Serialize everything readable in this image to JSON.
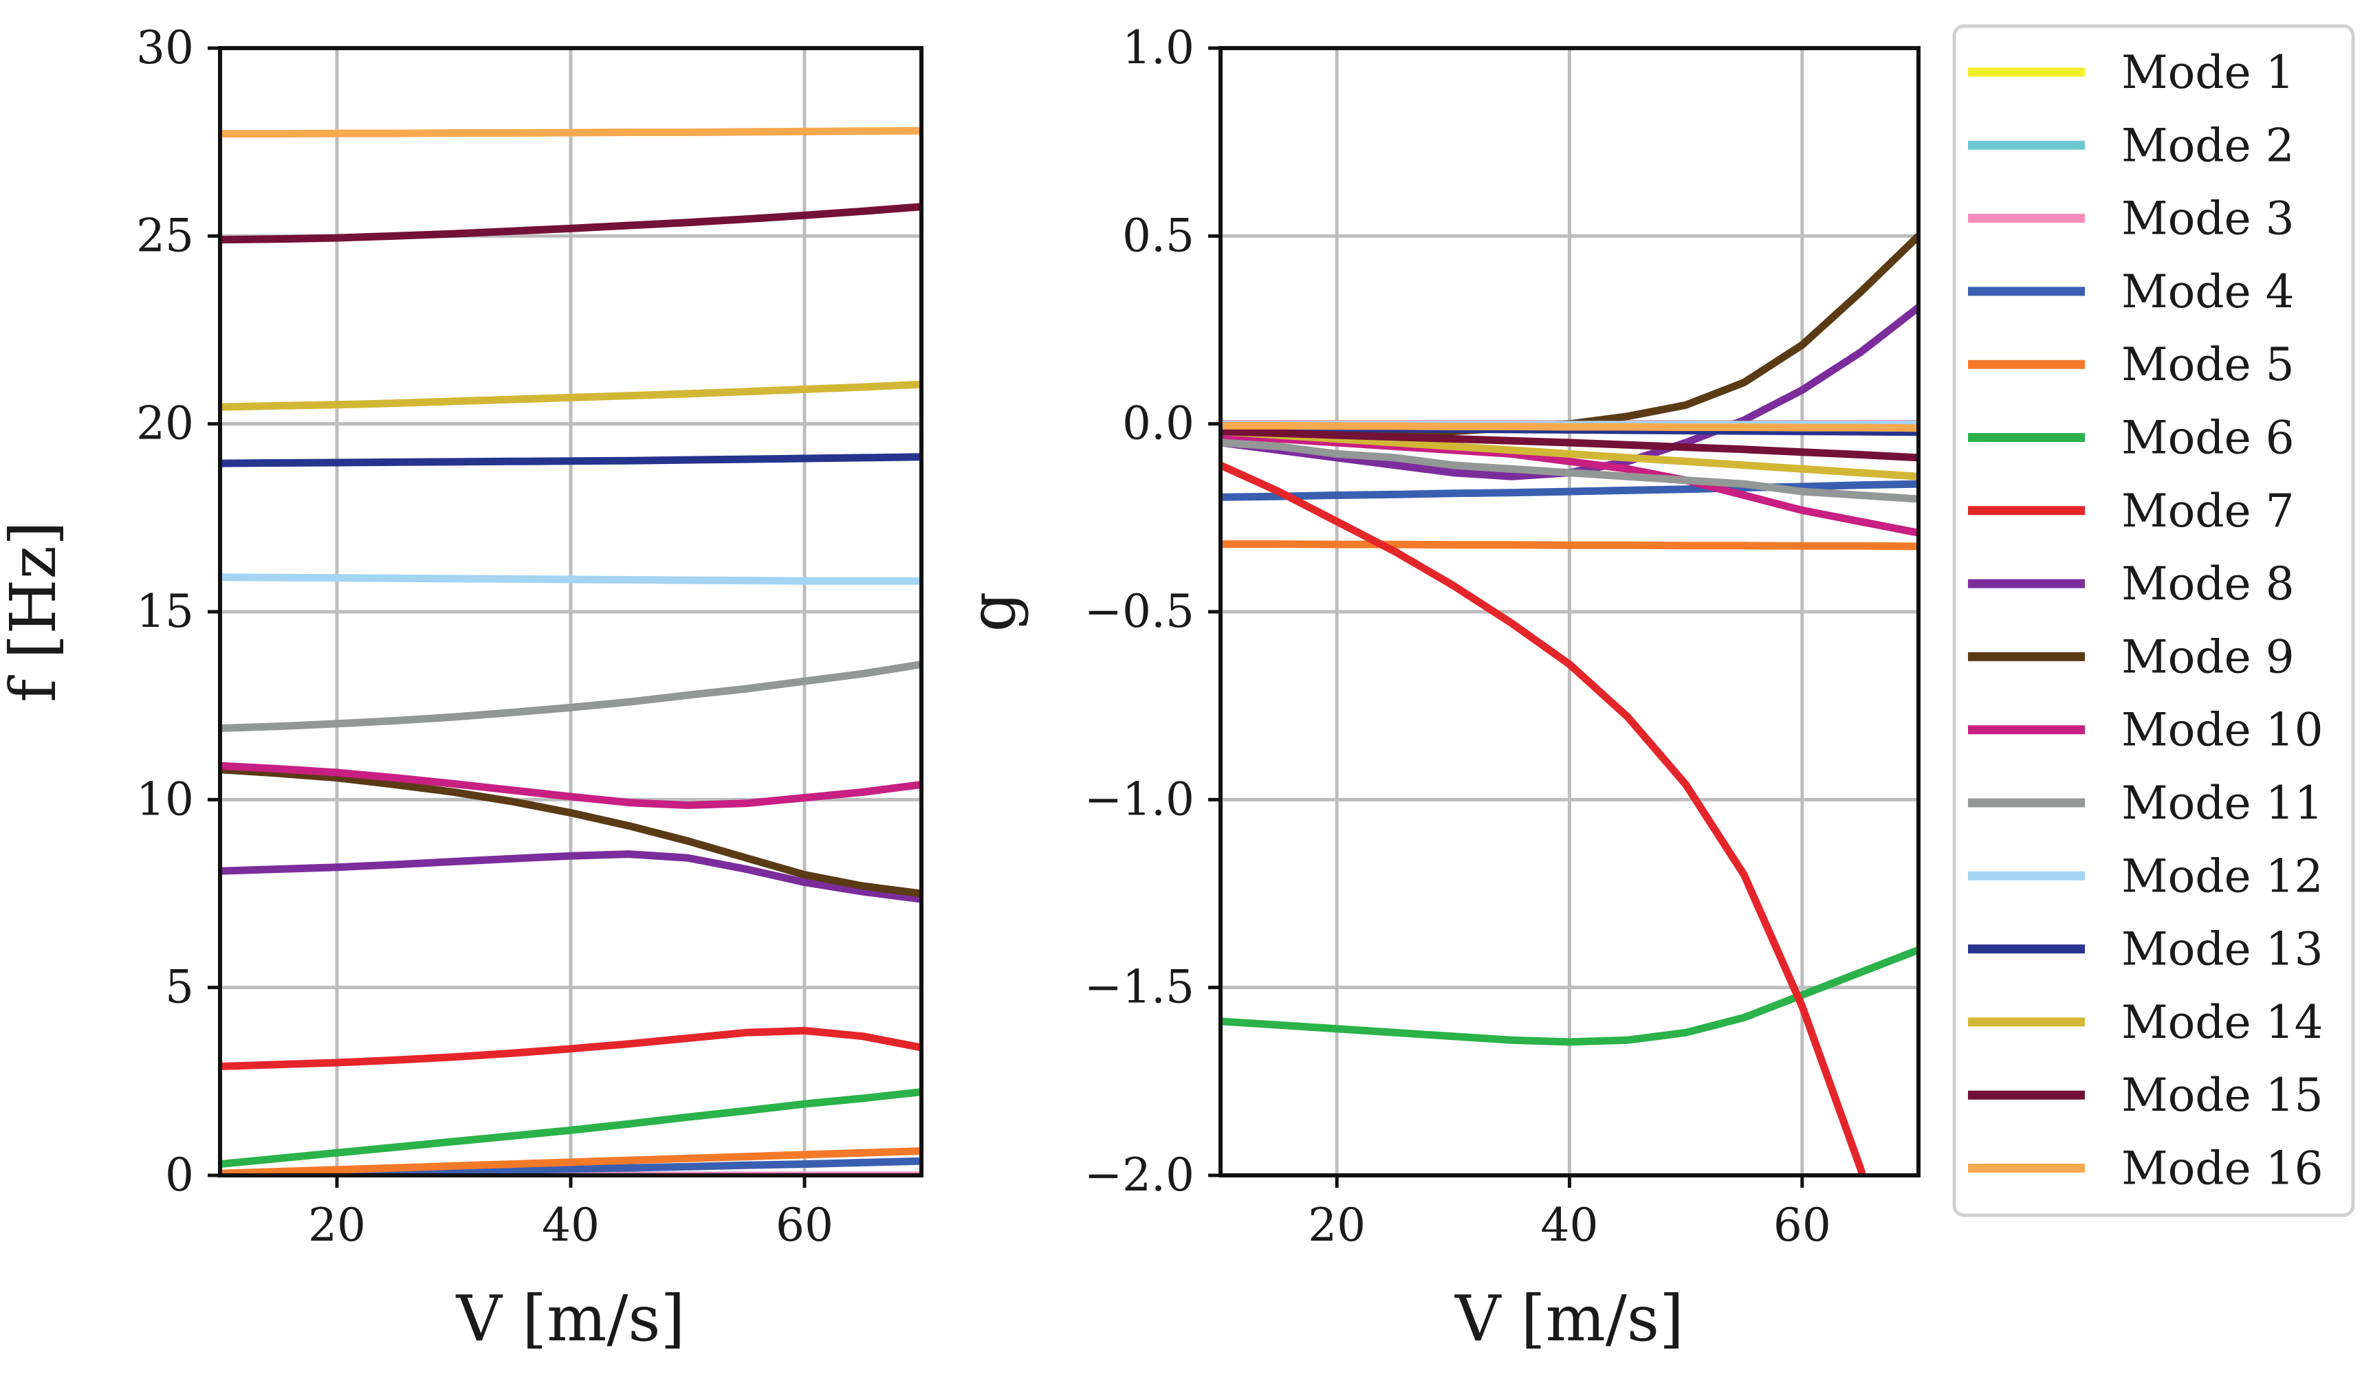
{
  "chart_data": [
    {
      "type": "line",
      "xlabel": "V [m/s]",
      "ylabel": "f [Hz]",
      "xlim": [
        10,
        70
      ],
      "ylim": [
        0,
        30
      ],
      "xticks": [
        20,
        40,
        60
      ],
      "xtick_labels": [
        "20",
        "40",
        "60"
      ],
      "yticks": [
        0,
        5,
        10,
        15,
        20,
        25,
        30
      ],
      "ytick_labels": [
        "0",
        "5",
        "10",
        "15",
        "20",
        "25",
        "30"
      ],
      "grid": true,
      "x": [
        10,
        15,
        20,
        25,
        30,
        35,
        40,
        45,
        50,
        55,
        60,
        65,
        70
      ],
      "series": [
        {
          "name": "Mode 1",
          "values": [
            0.0,
            0.0,
            0.0,
            0.0,
            0.0,
            0.0,
            0.0,
            0.0,
            0.0,
            0.0,
            0.0,
            0.0,
            0.0
          ]
        },
        {
          "name": "Mode 2",
          "values": [
            0.0,
            0.0,
            0.0,
            0.0,
            0.0,
            0.0,
            0.0,
            0.0,
            0.0,
            0.0,
            0.0,
            0.0,
            0.0
          ]
        },
        {
          "name": "Mode 3",
          "values": [
            0.0,
            0.0,
            0.0,
            0.0,
            0.0,
            0.0,
            0.0,
            0.0,
            0.0,
            0.0,
            0.0,
            0.0,
            0.0
          ]
        },
        {
          "name": "Mode 4",
          "values": [
            0.02,
            0.04,
            0.07,
            0.09,
            0.12,
            0.14,
            0.17,
            0.2,
            0.23,
            0.27,
            0.3,
            0.34,
            0.38
          ]
        },
        {
          "name": "Mode 5",
          "values": [
            0.05,
            0.1,
            0.15,
            0.2,
            0.25,
            0.3,
            0.35,
            0.4,
            0.45,
            0.5,
            0.55,
            0.6,
            0.65
          ]
        },
        {
          "name": "Mode 6",
          "values": [
            0.3,
            0.45,
            0.6,
            0.75,
            0.9,
            1.05,
            1.2,
            1.37,
            1.55,
            1.72,
            1.9,
            2.05,
            2.22
          ]
        },
        {
          "name": "Mode 7",
          "values": [
            2.9,
            2.95,
            3.0,
            3.07,
            3.15,
            3.25,
            3.37,
            3.5,
            3.65,
            3.8,
            3.85,
            3.7,
            3.4
          ]
        },
        {
          "name": "Mode 8",
          "values": [
            8.1,
            8.15,
            8.2,
            8.27,
            8.35,
            8.43,
            8.5,
            8.55,
            8.45,
            8.15,
            7.8,
            7.55,
            7.35
          ]
        },
        {
          "name": "Mode 9",
          "values": [
            10.8,
            10.7,
            10.58,
            10.4,
            10.2,
            9.95,
            9.65,
            9.3,
            8.9,
            8.45,
            8.0,
            7.7,
            7.5
          ]
        },
        {
          "name": "Mode 10",
          "values": [
            10.9,
            10.82,
            10.72,
            10.58,
            10.42,
            10.25,
            10.08,
            9.92,
            9.85,
            9.9,
            10.05,
            10.2,
            10.4
          ]
        },
        {
          "name": "Mode 11",
          "values": [
            11.9,
            11.95,
            12.02,
            12.1,
            12.2,
            12.32,
            12.45,
            12.6,
            12.78,
            12.95,
            13.15,
            13.35,
            13.6
          ]
        },
        {
          "name": "Mode 12",
          "values": [
            15.92,
            15.91,
            15.9,
            15.89,
            15.88,
            15.87,
            15.86,
            15.85,
            15.84,
            15.83,
            15.82,
            15.82,
            15.82
          ]
        },
        {
          "name": "Mode 13",
          "values": [
            18.95,
            18.96,
            18.97,
            18.98,
            18.99,
            19.0,
            19.01,
            19.02,
            19.04,
            19.06,
            19.08,
            19.1,
            19.12
          ]
        },
        {
          "name": "Mode 14",
          "values": [
            20.45,
            20.48,
            20.51,
            20.55,
            20.6,
            20.65,
            20.7,
            20.75,
            20.8,
            20.86,
            20.92,
            20.98,
            21.05
          ]
        },
        {
          "name": "Mode 15",
          "values": [
            24.9,
            24.92,
            24.95,
            25.0,
            25.06,
            25.13,
            25.2,
            25.28,
            25.36,
            25.45,
            25.55,
            25.66,
            25.78
          ]
        },
        {
          "name": "Mode 16",
          "values": [
            27.72,
            27.72,
            27.73,
            27.73,
            27.74,
            27.74,
            27.75,
            27.76,
            27.76,
            27.77,
            27.78,
            27.79,
            27.8
          ]
        }
      ]
    },
    {
      "type": "line",
      "xlabel": "V [m/s]",
      "ylabel": "g",
      "xlim": [
        10,
        70
      ],
      "ylim": [
        -2.0,
        1.0
      ],
      "xticks": [
        20,
        40,
        60
      ],
      "xtick_labels": [
        "20",
        "40",
        "60"
      ],
      "yticks": [
        -2.0,
        -1.5,
        -1.0,
        -0.5,
        0.0,
        0.5,
        1.0
      ],
      "ytick_labels": [
        "−2.0",
        "−1.5",
        "−1.0",
        "−0.5",
        "0.0",
        "0.5",
        "1.0"
      ],
      "grid": true,
      "x": [
        10,
        15,
        20,
        25,
        30,
        35,
        40,
        45,
        50,
        55,
        60,
        65,
        70
      ],
      "series": [
        {
          "name": "Mode 1",
          "values": [
            0.0,
            0.0,
            0.0,
            0.0,
            0.0,
            0.0,
            0.0,
            0.0,
            0.0,
            0.0,
            0.0,
            0.0,
            0.0
          ]
        },
        {
          "name": "Mode 2",
          "values": [
            0.0,
            0.0,
            0.0,
            0.0,
            0.0,
            0.0,
            0.0,
            0.0,
            0.0,
            0.0,
            0.0,
            0.0,
            0.0
          ]
        },
        {
          "name": "Mode 3",
          "values": [
            0.0,
            0.0,
            0.0,
            0.0,
            0.0,
            0.0,
            0.0,
            0.0,
            0.0,
            0.0,
            0.0,
            0.0,
            0.0
          ]
        },
        {
          "name": "Mode 4",
          "values": [
            -0.195,
            -0.193,
            -0.19,
            -0.188,
            -0.185,
            -0.183,
            -0.18,
            -0.177,
            -0.174,
            -0.17,
            -0.167,
            -0.163,
            -0.16
          ]
        },
        {
          "name": "Mode 5",
          "values": [
            -0.32,
            -0.32,
            -0.321,
            -0.321,
            -0.322,
            -0.322,
            -0.323,
            -0.323,
            -0.324,
            -0.324,
            -0.325,
            -0.325,
            -0.326
          ]
        },
        {
          "name": "Mode 6",
          "values": [
            -1.59,
            -1.6,
            -1.61,
            -1.62,
            -1.63,
            -1.64,
            -1.645,
            -1.64,
            -1.62,
            -1.58,
            -1.52,
            -1.46,
            -1.4
          ]
        },
        {
          "name": "Mode 7",
          "values": [
            -0.11,
            -0.18,
            -0.26,
            -0.34,
            -0.43,
            -0.53,
            -0.64,
            -0.78,
            -0.96,
            -1.2,
            -1.55,
            -1.98,
            -2.5
          ]
        },
        {
          "name": "Mode 8",
          "values": [
            -0.05,
            -0.07,
            -0.09,
            -0.11,
            -0.13,
            -0.14,
            -0.13,
            -0.1,
            -0.05,
            0.01,
            0.09,
            0.19,
            0.31
          ]
        },
        {
          "name": "Mode 9",
          "values": [
            -0.02,
            -0.02,
            -0.02,
            -0.02,
            -0.02,
            -0.01,
            0.0,
            0.02,
            0.05,
            0.11,
            0.21,
            0.35,
            0.5
          ]
        },
        {
          "name": "Mode 10",
          "values": [
            -0.03,
            -0.04,
            -0.05,
            -0.06,
            -0.07,
            -0.08,
            -0.1,
            -0.12,
            -0.15,
            -0.19,
            -0.23,
            -0.26,
            -0.29
          ]
        },
        {
          "name": "Mode 11",
          "values": [
            -0.05,
            -0.06,
            -0.08,
            -0.09,
            -0.11,
            -0.12,
            -0.13,
            -0.14,
            -0.15,
            -0.16,
            -0.18,
            -0.19,
            -0.2
          ]
        },
        {
          "name": "Mode 12",
          "values": [
            -0.002,
            -0.002,
            -0.002,
            -0.002,
            -0.002,
            -0.002,
            -0.002,
            -0.002,
            -0.002,
            -0.002,
            -0.002,
            -0.002,
            -0.002
          ]
        },
        {
          "name": "Mode 13",
          "values": [
            -0.01,
            -0.011,
            -0.012,
            -0.013,
            -0.014,
            -0.015,
            -0.016,
            -0.017,
            -0.018,
            -0.019,
            -0.02,
            -0.021,
            -0.022
          ]
        },
        {
          "name": "Mode 14",
          "values": [
            -0.02,
            -0.03,
            -0.04,
            -0.05,
            -0.06,
            -0.07,
            -0.08,
            -0.09,
            -0.1,
            -0.11,
            -0.12,
            -0.13,
            -0.14
          ]
        },
        {
          "name": "Mode 15",
          "values": [
            -0.02,
            -0.025,
            -0.03,
            -0.035,
            -0.04,
            -0.045,
            -0.05,
            -0.056,
            -0.062,
            -0.068,
            -0.075,
            -0.082,
            -0.09
          ]
        },
        {
          "name": "Mode 16",
          "values": [
            -0.005,
            -0.005,
            -0.006,
            -0.006,
            -0.007,
            -0.007,
            -0.008,
            -0.008,
            -0.009,
            -0.009,
            -0.01,
            -0.01,
            -0.011
          ]
        }
      ]
    }
  ],
  "legend": {
    "placement": "right",
    "entries": [
      {
        "label": "Mode 1",
        "color": "#f2ee2b"
      },
      {
        "label": "Mode 2",
        "color": "#6cc8d1"
      },
      {
        "label": "Mode 3",
        "color": "#f58cb8"
      },
      {
        "label": "Mode 4",
        "color": "#3a5fb0"
      },
      {
        "label": "Mode 5",
        "color": "#f47a2a"
      },
      {
        "label": "Mode 6",
        "color": "#2bb24a"
      },
      {
        "label": "Mode 7",
        "color": "#e4262b"
      },
      {
        "label": "Mode 8",
        "color": "#7b2d9c"
      },
      {
        "label": "Mode 9",
        "color": "#5b3a16"
      },
      {
        "label": "Mode 10",
        "color": "#c71f82"
      },
      {
        "label": "Mode 11",
        "color": "#939795"
      },
      {
        "label": "Mode 12",
        "color": "#a3d4f2"
      },
      {
        "label": "Mode 13",
        "color": "#26348e"
      },
      {
        "label": "Mode 14",
        "color": "#d2b737"
      },
      {
        "label": "Mode 15",
        "color": "#741136"
      },
      {
        "label": "Mode 16",
        "color": "#f7a950"
      }
    ]
  }
}
